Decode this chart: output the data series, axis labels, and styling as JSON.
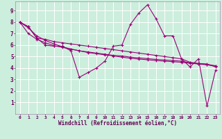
{
  "xlabel": "Windchill (Refroidissement éolien,°C)",
  "bg_color": "#cceedd",
  "grid_color": "#ffffff",
  "line_color": "#990077",
  "line_width": 0.8,
  "marker": "+",
  "marker_size": 3,
  "marker_lw": 0.8,
  "xlim": [
    -0.5,
    23.5
  ],
  "ylim": [
    0,
    9.8
  ],
  "xticks": [
    0,
    1,
    2,
    3,
    4,
    5,
    6,
    7,
    8,
    9,
    10,
    11,
    12,
    13,
    14,
    15,
    16,
    17,
    18,
    19,
    20,
    21,
    22,
    23
  ],
  "yticks": [
    1,
    2,
    3,
    4,
    5,
    6,
    7,
    8,
    9
  ],
  "series": [
    [
      8.0,
      7.6,
      6.6,
      6.0,
      5.9,
      5.9,
      5.5,
      3.2,
      3.6,
      4.0,
      4.6,
      5.9,
      6.0,
      7.8,
      8.8,
      9.5,
      8.3,
      6.8,
      6.8,
      4.8,
      4.1,
      4.8,
      0.7,
      3.8
    ],
    [
      8.0,
      7.6,
      6.6,
      6.5,
      6.3,
      6.2,
      6.1,
      6.0,
      5.9,
      5.8,
      5.7,
      5.6,
      5.5,
      5.4,
      5.3,
      5.2,
      5.1,
      5.0,
      4.9,
      4.8,
      4.5,
      4.4,
      4.35,
      4.1
    ],
    [
      8.0,
      7.0,
      6.5,
      6.2,
      5.95,
      5.8,
      5.65,
      5.5,
      5.4,
      5.3,
      5.2,
      5.1,
      5.05,
      4.95,
      4.88,
      4.82,
      4.75,
      4.7,
      4.65,
      4.6,
      4.45,
      4.38,
      4.32,
      4.2
    ],
    [
      8.0,
      7.5,
      6.8,
      6.4,
      6.1,
      5.85,
      5.65,
      5.5,
      5.35,
      5.25,
      5.15,
      5.05,
      4.95,
      4.85,
      4.78,
      4.72,
      4.65,
      4.6,
      4.55,
      4.5,
      4.42,
      4.35,
      4.28,
      4.15
    ]
  ]
}
